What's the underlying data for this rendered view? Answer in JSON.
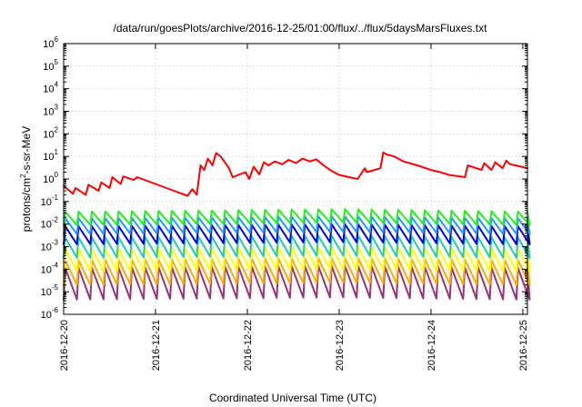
{
  "chart_data": {
    "type": "line",
    "title": "/data/run/goesPlots/archive/2016-12-25/01:00/flux/../flux/5daysMarsFluxes.txt",
    "xlabel": "Coordinated Universal Time (UTC)",
    "ylabel": {
      "base": "protons/cm",
      "exp": "2",
      "rest": "-s-sr-MeV"
    },
    "yscale": "log",
    "ylim": [
      1e-06,
      1000000.0
    ],
    "xlim": [
      0,
      5.05
    ],
    "grid": true,
    "x_tick_labels": [
      "2016-12-20",
      "2016-12-21",
      "2016-12-22",
      "2016-12-23",
      "2016-12-24",
      "2016-12-25"
    ],
    "x_tick_values": [
      0,
      1,
      2,
      3,
      4,
      5
    ],
    "y_ticks": [
      {
        "base": "10",
        "exp": "-6",
        "value": -6
      },
      {
        "base": "10",
        "exp": "-5",
        "value": -5
      },
      {
        "base": "10",
        "exp": "-4",
        "value": -4
      },
      {
        "base": "10",
        "exp": "-3",
        "value": -3
      },
      {
        "base": "10",
        "exp": "-2",
        "value": -2
      },
      {
        "base": "10",
        "exp": "-1",
        "value": -1
      },
      {
        "base": "10",
        "exp": "0",
        "value": 0
      },
      {
        "base": "10",
        "exp": "1",
        "value": 1
      },
      {
        "base": "10",
        "exp": "2",
        "value": 2
      },
      {
        "base": "10",
        "exp": "3",
        "value": 3
      },
      {
        "base": "10",
        "exp": "4",
        "value": 4
      },
      {
        "base": "10",
        "exp": "5",
        "value": 5
      },
      {
        "base": "10",
        "exp": "6",
        "value": 6
      }
    ],
    "series": [
      {
        "color": "#ff0000",
        "x": [
          0,
          0.1,
          0.13,
          0.24,
          0.27,
          0.38,
          0.41,
          0.5,
          0.53,
          0.62,
          0.65,
          0.76,
          0.8,
          1.0,
          1.2,
          1.35,
          1.4,
          1.45,
          1.49,
          1.53,
          1.57,
          1.62,
          1.66,
          1.71,
          1.8,
          1.84,
          1.98,
          2.02,
          2.07,
          2.13,
          2.18,
          2.23,
          2.3,
          2.38,
          2.45,
          2.53,
          2.6,
          2.68,
          2.75,
          2.83,
          2.9,
          3.0,
          3.2,
          3.28,
          3.3,
          3.45,
          3.48,
          3.52,
          3.6,
          3.7,
          3.85,
          4.0,
          4.1,
          4.2,
          4.37,
          4.4,
          4.55,
          4.58,
          4.66,
          4.7,
          4.78,
          4.82,
          4.86,
          4.92,
          5.05
        ],
        "y": [
          0.5,
          0.22,
          0.4,
          0.2,
          0.55,
          0.3,
          0.7,
          0.4,
          1.2,
          0.6,
          1.3,
          0.9,
          1.2,
          0.6,
          0.3,
          0.18,
          0.35,
          0.2,
          4.0,
          2.5,
          8.0,
          4.0,
          14.0,
          10.0,
          3.0,
          1.2,
          2.0,
          1.0,
          3.5,
          1.6,
          5.5,
          4.0,
          6.0,
          4.5,
          7.0,
          5.0,
          8.0,
          6.0,
          7.5,
          4.0,
          2.5,
          1.5,
          1.0,
          3.0,
          2.0,
          3.0,
          15.0,
          12.0,
          10.0,
          6.0,
          4.0,
          2.5,
          2.0,
          1.5,
          1.2,
          4.0,
          2.5,
          5.0,
          2.5,
          5.5,
          3.0,
          6.5,
          4.5,
          4.0,
          3.0
        ]
      },
      {
        "color": "#22ee22",
        "base": -1.75,
        "amp": 0.3,
        "period": 0.145,
        "trend": [
          0,
          0.0,
          1.5,
          0.05,
          3.0,
          0.12,
          5.05,
          0.0
        ]
      },
      {
        "color": "#2299ff",
        "base": -2.1,
        "amp": 0.35,
        "period": 0.145,
        "trend": [
          0,
          0.0,
          1.5,
          0.05,
          3.0,
          0.1,
          5.05,
          0.0
        ]
      },
      {
        "color": "#0000dd",
        "base": -2.5,
        "amp": 0.4,
        "period": 0.145,
        "trend": [
          0,
          0.0,
          1.5,
          0.05,
          3.0,
          0.1,
          5.05,
          0.0
        ]
      },
      {
        "color": "#22ccaa",
        "base": -3.05,
        "amp": 0.45,
        "period": 0.145,
        "trend": [
          0,
          0.0,
          1.5,
          0.05,
          3.0,
          0.1,
          5.05,
          0.0
        ]
      },
      {
        "color": "#ffff00",
        "base": -3.6,
        "amp": 0.5,
        "period": 0.145,
        "trend": [
          0,
          0.0,
          1.5,
          0.05,
          3.0,
          0.1,
          5.05,
          0.0
        ]
      },
      {
        "color": "#ffaa00",
        "base": -4.15,
        "amp": 0.55,
        "period": 0.145,
        "trend": [
          0,
          0.0,
          1.5,
          0.05,
          3.0,
          0.1,
          5.05,
          0.0
        ]
      },
      {
        "color": "#993377",
        "base": -4.65,
        "amp": 0.7,
        "period": 0.145,
        "trend": [
          0,
          0.0,
          1.5,
          0.05,
          3.0,
          0.1,
          5.05,
          0.0
        ]
      }
    ]
  }
}
